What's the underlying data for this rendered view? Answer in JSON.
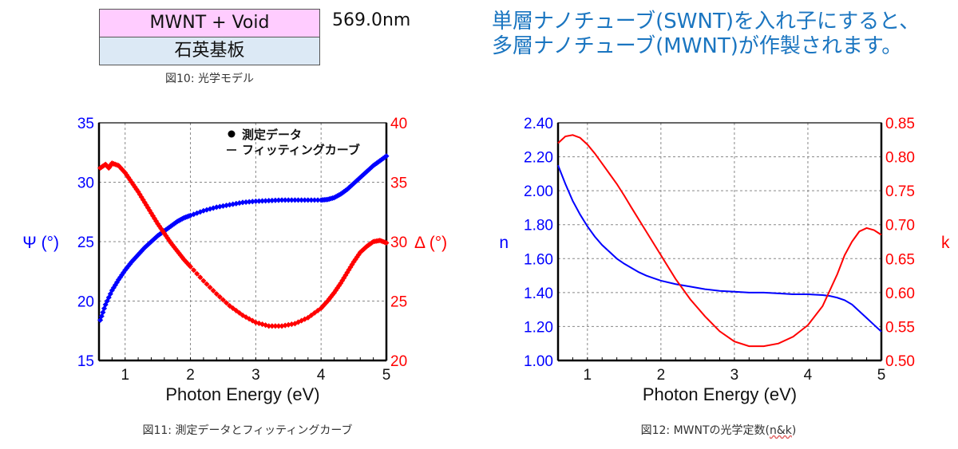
{
  "optical_model": {
    "layer_top": "MWNT + Void",
    "layer_bottom": "石英基板",
    "thickness": "569.0nm",
    "caption": "図10: 光学モデル"
  },
  "note": "単層ナノチューブ(SWNT)を入れ子にすると、多層ナノチューブ(MWNT)が作製されます。",
  "captions": {
    "fig11": "図11: 測定データとフィッティングカーブ",
    "fig12_prefix": "図12: MWNTの光学定数(",
    "fig12_underlined": "n&k",
    "fig12_suffix": ")"
  },
  "colors": {
    "blue": "#0000ff",
    "red": "#ff0000",
    "note": "#1a75c0"
  },
  "chart_data": [
    {
      "type": "scatter",
      "title": "",
      "xlabel": "Photon Energy (eV)",
      "ylabel": "Ψ (°)",
      "y2label": "Δ (°)",
      "xlim": [
        0.6,
        5
      ],
      "ylim": [
        15,
        35
      ],
      "y2lim": [
        20,
        40
      ],
      "x_ticks": [
        "1",
        "2",
        "3",
        "4",
        "5"
      ],
      "y_ticks": [
        "15",
        "20",
        "25",
        "30",
        "35"
      ],
      "y2_ticks": [
        "20",
        "25",
        "30",
        "35",
        "40"
      ],
      "grid": true,
      "legend": {
        "position": "top-right",
        "entries": [
          "測定データ",
          "フィッティングカーブ"
        ]
      },
      "series": [
        {
          "name": "Ψ",
          "axis": "left",
          "color": "#0000ff",
          "x": [
            0.62,
            0.7,
            0.8,
            0.9,
            1.0,
            1.1,
            1.2,
            1.3,
            1.4,
            1.5,
            1.6,
            1.7,
            1.8,
            1.9,
            2.0,
            2.2,
            2.4,
            2.6,
            2.8,
            3.0,
            3.2,
            3.4,
            3.6,
            3.8,
            4.0,
            4.1,
            4.2,
            4.3,
            4.4,
            4.5,
            4.6,
            4.7,
            4.8,
            4.9,
            5.0
          ],
          "y": [
            18.4,
            19.7,
            20.9,
            21.8,
            22.6,
            23.3,
            23.9,
            24.5,
            25.0,
            25.5,
            25.9,
            26.3,
            26.7,
            27.0,
            27.2,
            27.6,
            27.9,
            28.1,
            28.3,
            28.4,
            28.45,
            28.5,
            28.5,
            28.5,
            28.5,
            28.55,
            28.7,
            29.0,
            29.4,
            29.9,
            30.4,
            30.9,
            31.4,
            31.8,
            32.2
          ]
        },
        {
          "name": "Δ",
          "axis": "right",
          "color": "#ff0000",
          "x": [
            0.62,
            0.7,
            0.75,
            0.8,
            0.9,
            1.0,
            1.1,
            1.2,
            1.3,
            1.4,
            1.5,
            1.6,
            1.7,
            1.8,
            1.9,
            2.0,
            2.2,
            2.4,
            2.6,
            2.8,
            3.0,
            3.2,
            3.4,
            3.6,
            3.8,
            4.0,
            4.1,
            4.2,
            4.3,
            4.4,
            4.5,
            4.6,
            4.7,
            4.8,
            4.9,
            5.0
          ],
          "y": [
            36.2,
            36.5,
            36.2,
            36.6,
            36.4,
            35.8,
            35.0,
            34.2,
            33.3,
            32.4,
            31.5,
            30.7,
            29.9,
            29.2,
            28.5,
            27.9,
            26.7,
            25.6,
            24.6,
            23.8,
            23.2,
            22.9,
            22.9,
            23.1,
            23.6,
            24.4,
            25.0,
            25.7,
            26.5,
            27.4,
            28.3,
            29.1,
            29.6,
            30.0,
            30.1,
            29.9
          ]
        }
      ]
    },
    {
      "type": "line",
      "title": "",
      "xlabel": "Photon Energy (eV)",
      "ylabel": "n",
      "y2label": "k",
      "xlim": [
        0.6,
        5
      ],
      "ylim": [
        1.0,
        2.4
      ],
      "y2lim": [
        0.5,
        0.85
      ],
      "x_ticks": [
        "1",
        "2",
        "3",
        "4",
        "5"
      ],
      "y_ticks": [
        "1.00",
        "1.20",
        "1.40",
        "1.60",
        "1.80",
        "2.00",
        "2.20",
        "2.40"
      ],
      "y2_ticks": [
        "0.50",
        "0.55",
        "0.60",
        "0.65",
        "0.70",
        "0.75",
        "0.80",
        "0.85"
      ],
      "grid": true,
      "series": [
        {
          "name": "n",
          "axis": "left",
          "color": "#0000ff",
          "x": [
            0.6,
            0.7,
            0.8,
            0.9,
            1.0,
            1.1,
            1.2,
            1.3,
            1.4,
            1.5,
            1.6,
            1.7,
            1.8,
            1.9,
            2.0,
            2.2,
            2.4,
            2.6,
            2.8,
            3.0,
            3.2,
            3.4,
            3.6,
            3.8,
            4.0,
            4.2,
            4.3,
            4.4,
            4.5,
            4.6,
            4.7,
            4.8,
            4.9,
            5.0
          ],
          "y": [
            2.15,
            2.04,
            1.94,
            1.86,
            1.79,
            1.73,
            1.68,
            1.64,
            1.6,
            1.57,
            1.545,
            1.52,
            1.5,
            1.485,
            1.47,
            1.45,
            1.435,
            1.42,
            1.41,
            1.405,
            1.4,
            1.4,
            1.395,
            1.39,
            1.39,
            1.385,
            1.38,
            1.37,
            1.355,
            1.33,
            1.29,
            1.25,
            1.21,
            1.17
          ]
        },
        {
          "name": "k",
          "axis": "right",
          "color": "#ff0000",
          "x": [
            0.6,
            0.7,
            0.8,
            0.9,
            1.0,
            1.1,
            1.2,
            1.3,
            1.4,
            1.5,
            1.6,
            1.8,
            2.0,
            2.2,
            2.4,
            2.6,
            2.8,
            3.0,
            3.2,
            3.4,
            3.6,
            3.8,
            4.0,
            4.2,
            4.4,
            4.5,
            4.6,
            4.7,
            4.8,
            4.9,
            5.0
          ],
          "y": [
            0.82,
            0.83,
            0.832,
            0.828,
            0.818,
            0.805,
            0.79,
            0.775,
            0.76,
            0.743,
            0.725,
            0.69,
            0.655,
            0.62,
            0.59,
            0.565,
            0.543,
            0.528,
            0.521,
            0.521,
            0.525,
            0.535,
            0.552,
            0.58,
            0.627,
            0.655,
            0.675,
            0.69,
            0.695,
            0.692,
            0.685
          ]
        }
      ]
    }
  ]
}
